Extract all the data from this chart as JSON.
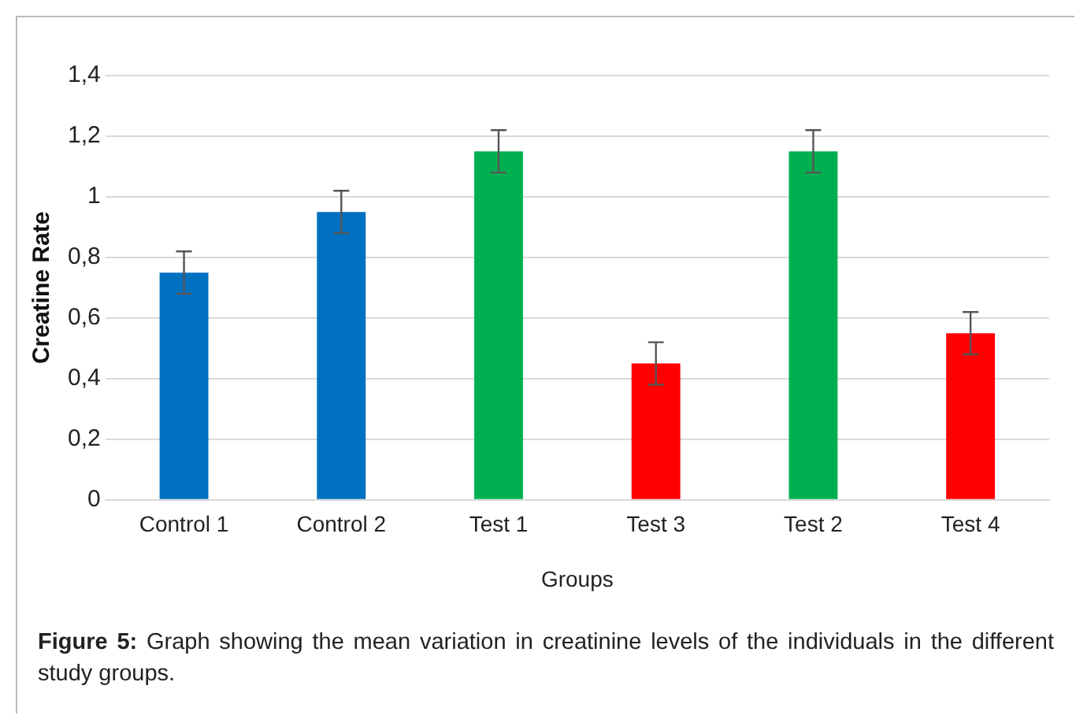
{
  "chart_data": {
    "type": "bar",
    "xlabel": "Groups",
    "ylabel": "Creatine Rate",
    "categories": [
      "Control 1",
      "Control 2",
      "Test 1",
      "Test 3",
      "Test 2",
      "Test 4"
    ],
    "values": [
      0.75,
      0.95,
      1.15,
      0.45,
      1.15,
      0.55
    ],
    "errors": [
      0.07,
      0.07,
      0.07,
      0.07,
      0.07,
      0.07
    ],
    "colors": [
      "#0070c0",
      "#0070c0",
      "#00b050",
      "#ff0000",
      "#00b050",
      "#ff0000"
    ],
    "ylim": [
      0,
      1.4
    ],
    "yticks": [
      0,
      {
        "value": 0.2,
        "label": "0,2"
      },
      {
        "value": 0.4,
        "label": "0,4"
      },
      {
        "value": 0.6,
        "label": "0,6"
      },
      {
        "value": 0.8,
        "label": "0,8"
      },
      1,
      {
        "value": 1.2,
        "label": "1,2"
      },
      {
        "value": 1.4,
        "label": "1,4"
      }
    ],
    "grid": "y",
    "legend": false,
    "annotations": [
      "Figure 5: Graph showing the mean variation in creatinine levels of the individuals in the different study groups."
    ]
  }
}
